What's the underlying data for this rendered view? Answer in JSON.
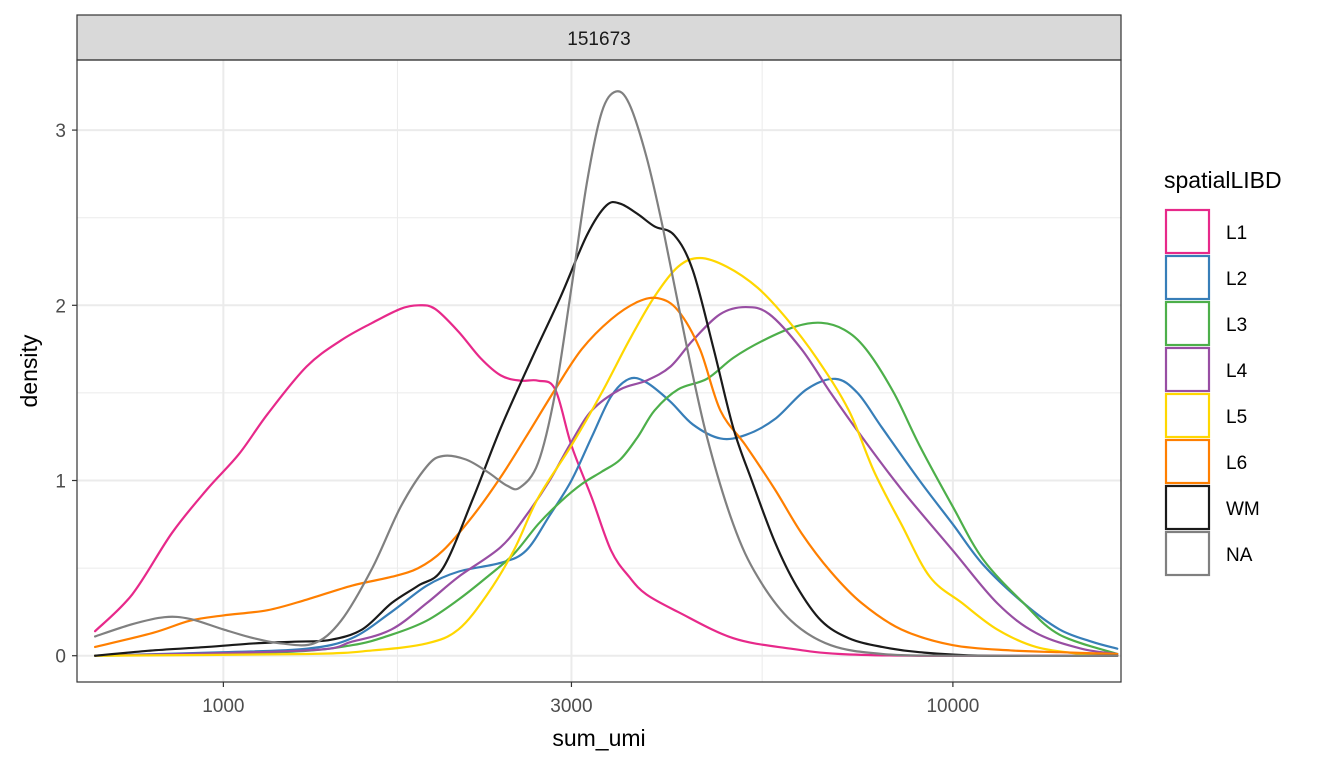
{
  "chart_data": {
    "type": "line",
    "facet_label": "151673",
    "xlabel": "sum_umi",
    "ylabel": "density",
    "x_scale": "log10",
    "xlim": [
      630,
      17000
    ],
    "ylim": [
      -0.15,
      3.4
    ],
    "x_ticks": [
      1000,
      3000,
      10000
    ],
    "x_tick_labels": [
      "1000",
      "3000",
      "10000"
    ],
    "y_ticks": [
      0,
      1,
      2,
      3
    ],
    "y_tick_labels": [
      "0",
      "1",
      "2",
      "3"
    ],
    "grid": true,
    "legend_title": "spatialLIBD",
    "legend_position": "right",
    "series": [
      {
        "name": "L1",
        "color": "#e7298a",
        "points": [
          [
            667,
            0.14
          ],
          [
            750,
            0.35
          ],
          [
            850,
            0.7
          ],
          [
            950,
            0.95
          ],
          [
            1050,
            1.15
          ],
          [
            1150,
            1.38
          ],
          [
            1300,
            1.65
          ],
          [
            1450,
            1.8
          ],
          [
            1600,
            1.9
          ],
          [
            1750,
            1.98
          ],
          [
            1850,
            2.0
          ],
          [
            1950,
            1.98
          ],
          [
            2100,
            1.85
          ],
          [
            2250,
            1.7
          ],
          [
            2400,
            1.6
          ],
          [
            2550,
            1.57
          ],
          [
            2700,
            1.57
          ],
          [
            2850,
            1.52
          ],
          [
            3000,
            1.2
          ],
          [
            3200,
            0.9
          ],
          [
            3400,
            0.6
          ],
          [
            3600,
            0.45
          ],
          [
            3800,
            0.35
          ],
          [
            4200,
            0.25
          ],
          [
            5000,
            0.1
          ],
          [
            6000,
            0.04
          ],
          [
            7000,
            0.01
          ],
          [
            9000,
            0.0
          ],
          [
            16800,
            0.0
          ]
        ]
      },
      {
        "name": "L2",
        "color": "#377eb8",
        "points": [
          [
            667,
            0.0
          ],
          [
            1000,
            0.02
          ],
          [
            1300,
            0.04
          ],
          [
            1500,
            0.1
          ],
          [
            1700,
            0.25
          ],
          [
            1900,
            0.4
          ],
          [
            2100,
            0.48
          ],
          [
            2400,
            0.53
          ],
          [
            2600,
            0.6
          ],
          [
            2800,
            0.8
          ],
          [
            3000,
            1.0
          ],
          [
            3200,
            1.25
          ],
          [
            3400,
            1.48
          ],
          [
            3600,
            1.58
          ],
          [
            3800,
            1.56
          ],
          [
            4100,
            1.45
          ],
          [
            4400,
            1.32
          ],
          [
            4800,
            1.24
          ],
          [
            5200,
            1.26
          ],
          [
            5700,
            1.35
          ],
          [
            6300,
            1.52
          ],
          [
            6900,
            1.58
          ],
          [
            7400,
            1.5
          ],
          [
            8000,
            1.3
          ],
          [
            9000,
            1.0
          ],
          [
            10000,
            0.75
          ],
          [
            11000,
            0.52
          ],
          [
            12500,
            0.3
          ],
          [
            14000,
            0.15
          ],
          [
            15500,
            0.08
          ],
          [
            16800,
            0.04
          ]
        ]
      },
      {
        "name": "L3",
        "color": "#4daf4a",
        "points": [
          [
            667,
            0.0
          ],
          [
            1200,
            0.02
          ],
          [
            1500,
            0.06
          ],
          [
            1700,
            0.12
          ],
          [
            1900,
            0.2
          ],
          [
            2100,
            0.32
          ],
          [
            2300,
            0.45
          ],
          [
            2500,
            0.58
          ],
          [
            2700,
            0.75
          ],
          [
            2900,
            0.88
          ],
          [
            3100,
            0.98
          ],
          [
            3300,
            1.05
          ],
          [
            3500,
            1.12
          ],
          [
            3700,
            1.25
          ],
          [
            3900,
            1.4
          ],
          [
            4200,
            1.52
          ],
          [
            4600,
            1.58
          ],
          [
            5000,
            1.7
          ],
          [
            5500,
            1.8
          ],
          [
            6100,
            1.88
          ],
          [
            6600,
            1.9
          ],
          [
            7100,
            1.86
          ],
          [
            7600,
            1.75
          ],
          [
            8300,
            1.5
          ],
          [
            9000,
            1.2
          ],
          [
            10000,
            0.85
          ],
          [
            11000,
            0.55
          ],
          [
            12500,
            0.3
          ],
          [
            14000,
            0.12
          ],
          [
            16800,
            0.01
          ]
        ]
      },
      {
        "name": "L4",
        "color": "#984ea3",
        "points": [
          [
            667,
            0.0
          ],
          [
            1300,
            0.03
          ],
          [
            1500,
            0.08
          ],
          [
            1700,
            0.15
          ],
          [
            1900,
            0.3
          ],
          [
            2100,
            0.45
          ],
          [
            2400,
            0.62
          ],
          [
            2600,
            0.8
          ],
          [
            2800,
            1.0
          ],
          [
            3000,
            1.22
          ],
          [
            3200,
            1.4
          ],
          [
            3500,
            1.52
          ],
          [
            3800,
            1.57
          ],
          [
            4100,
            1.65
          ],
          [
            4400,
            1.8
          ],
          [
            4800,
            1.95
          ],
          [
            5200,
            1.99
          ],
          [
            5600,
            1.95
          ],
          [
            6200,
            1.75
          ],
          [
            6800,
            1.5
          ],
          [
            7500,
            1.25
          ],
          [
            8500,
            0.95
          ],
          [
            10000,
            0.6
          ],
          [
            11500,
            0.3
          ],
          [
            13000,
            0.13
          ],
          [
            15000,
            0.04
          ],
          [
            16800,
            0.01
          ]
        ]
      },
      {
        "name": "L5",
        "color": "#ffd700",
        "points": [
          [
            667,
            0.0
          ],
          [
            1300,
            0.01
          ],
          [
            1600,
            0.03
          ],
          [
            1900,
            0.07
          ],
          [
            2100,
            0.15
          ],
          [
            2300,
            0.35
          ],
          [
            2500,
            0.6
          ],
          [
            2700,
            0.9
          ],
          [
            3000,
            1.2
          ],
          [
            3300,
            1.5
          ],
          [
            3600,
            1.8
          ],
          [
            3900,
            2.05
          ],
          [
            4200,
            2.22
          ],
          [
            4500,
            2.27
          ],
          [
            4900,
            2.22
          ],
          [
            5400,
            2.1
          ],
          [
            5900,
            1.93
          ],
          [
            6500,
            1.7
          ],
          [
            7200,
            1.4
          ],
          [
            7800,
            1.05
          ],
          [
            8500,
            0.75
          ],
          [
            9300,
            0.45
          ],
          [
            10300,
            0.3
          ],
          [
            11500,
            0.15
          ],
          [
            13000,
            0.05
          ],
          [
            15000,
            0.01
          ],
          [
            16800,
            0.0
          ]
        ]
      },
      {
        "name": "L6",
        "color": "#ff7f00",
        "points": [
          [
            667,
            0.05
          ],
          [
            800,
            0.13
          ],
          [
            900,
            0.2
          ],
          [
            1000,
            0.23
          ],
          [
            1150,
            0.26
          ],
          [
            1300,
            0.32
          ],
          [
            1500,
            0.4
          ],
          [
            1700,
            0.45
          ],
          [
            1850,
            0.5
          ],
          [
            2000,
            0.6
          ],
          [
            2200,
            0.8
          ],
          [
            2400,
            1.02
          ],
          [
            2600,
            1.25
          ],
          [
            2850,
            1.52
          ],
          [
            3100,
            1.75
          ],
          [
            3400,
            1.92
          ],
          [
            3700,
            2.02
          ],
          [
            3950,
            2.04
          ],
          [
            4200,
            1.97
          ],
          [
            4500,
            1.75
          ],
          [
            4800,
            1.4
          ],
          [
            5200,
            1.2
          ],
          [
            5700,
            0.95
          ],
          [
            6200,
            0.7
          ],
          [
            6800,
            0.48
          ],
          [
            7500,
            0.3
          ],
          [
            8500,
            0.15
          ],
          [
            10000,
            0.06
          ],
          [
            12000,
            0.03
          ],
          [
            14000,
            0.02
          ],
          [
            16800,
            0.01
          ]
        ]
      },
      {
        "name": "WM",
        "color": "#1a1a1a",
        "points": [
          [
            667,
            0.0
          ],
          [
            800,
            0.03
          ],
          [
            950,
            0.05
          ],
          [
            1100,
            0.07
          ],
          [
            1250,
            0.08
          ],
          [
            1400,
            0.09
          ],
          [
            1550,
            0.15
          ],
          [
            1700,
            0.3
          ],
          [
            1850,
            0.4
          ],
          [
            2000,
            0.5
          ],
          [
            2200,
            0.9
          ],
          [
            2400,
            1.3
          ],
          [
            2650,
            1.7
          ],
          [
            2900,
            2.05
          ],
          [
            3150,
            2.4
          ],
          [
            3350,
            2.57
          ],
          [
            3500,
            2.58
          ],
          [
            3700,
            2.52
          ],
          [
            3900,
            2.45
          ],
          [
            4150,
            2.4
          ],
          [
            4400,
            2.2
          ],
          [
            4700,
            1.75
          ],
          [
            5000,
            1.3
          ],
          [
            5300,
            1.0
          ],
          [
            5700,
            0.65
          ],
          [
            6100,
            0.4
          ],
          [
            6600,
            0.2
          ],
          [
            7200,
            0.1
          ],
          [
            8000,
            0.05
          ],
          [
            9000,
            0.02
          ],
          [
            11000,
            0.0
          ],
          [
            16800,
            0.0
          ]
        ]
      },
      {
        "name": "NA",
        "color": "#808080",
        "points": [
          [
            667,
            0.11
          ],
          [
            750,
            0.18
          ],
          [
            830,
            0.22
          ],
          [
            900,
            0.21
          ],
          [
            1000,
            0.15
          ],
          [
            1100,
            0.1
          ],
          [
            1200,
            0.07
          ],
          [
            1330,
            0.07
          ],
          [
            1450,
            0.2
          ],
          [
            1600,
            0.5
          ],
          [
            1750,
            0.85
          ],
          [
            1900,
            1.08
          ],
          [
            2000,
            1.14
          ],
          [
            2150,
            1.12
          ],
          [
            2300,
            1.05
          ],
          [
            2450,
            0.97
          ],
          [
            2550,
            0.96
          ],
          [
            2700,
            1.1
          ],
          [
            2850,
            1.5
          ],
          [
            3000,
            2.1
          ],
          [
            3150,
            2.7
          ],
          [
            3300,
            3.1
          ],
          [
            3450,
            3.22
          ],
          [
            3600,
            3.15
          ],
          [
            3800,
            2.85
          ],
          [
            4000,
            2.45
          ],
          [
            4300,
            1.8
          ],
          [
            4600,
            1.25
          ],
          [
            5000,
            0.75
          ],
          [
            5400,
            0.45
          ],
          [
            6000,
            0.2
          ],
          [
            6800,
            0.06
          ],
          [
            8000,
            0.01
          ],
          [
            10000,
            0.0
          ],
          [
            16800,
            0.0
          ]
        ]
      }
    ]
  }
}
